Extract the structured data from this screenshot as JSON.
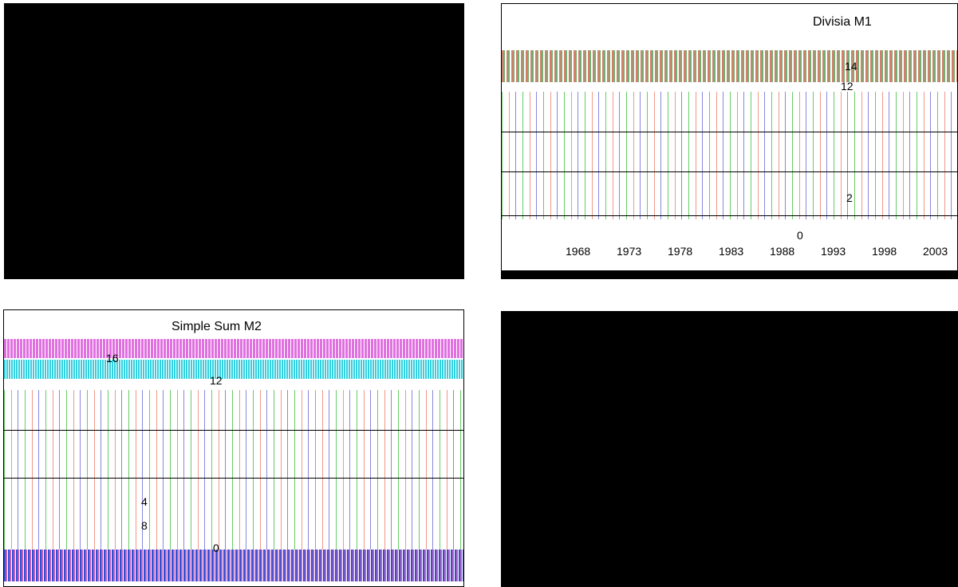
{
  "panels": {
    "top_right": {
      "title": "Divisia M1",
      "yticks": [
        "14",
        "12",
        "2",
        "0"
      ],
      "xticks": [
        "1968",
        "1973",
        "1978",
        "1983",
        "1988",
        "1993",
        "1998",
        "2003"
      ]
    },
    "bottom_left": {
      "title": "Simple Sum M2",
      "yticks": [
        "16",
        "12",
        "4",
        "8",
        "0"
      ]
    }
  }
}
